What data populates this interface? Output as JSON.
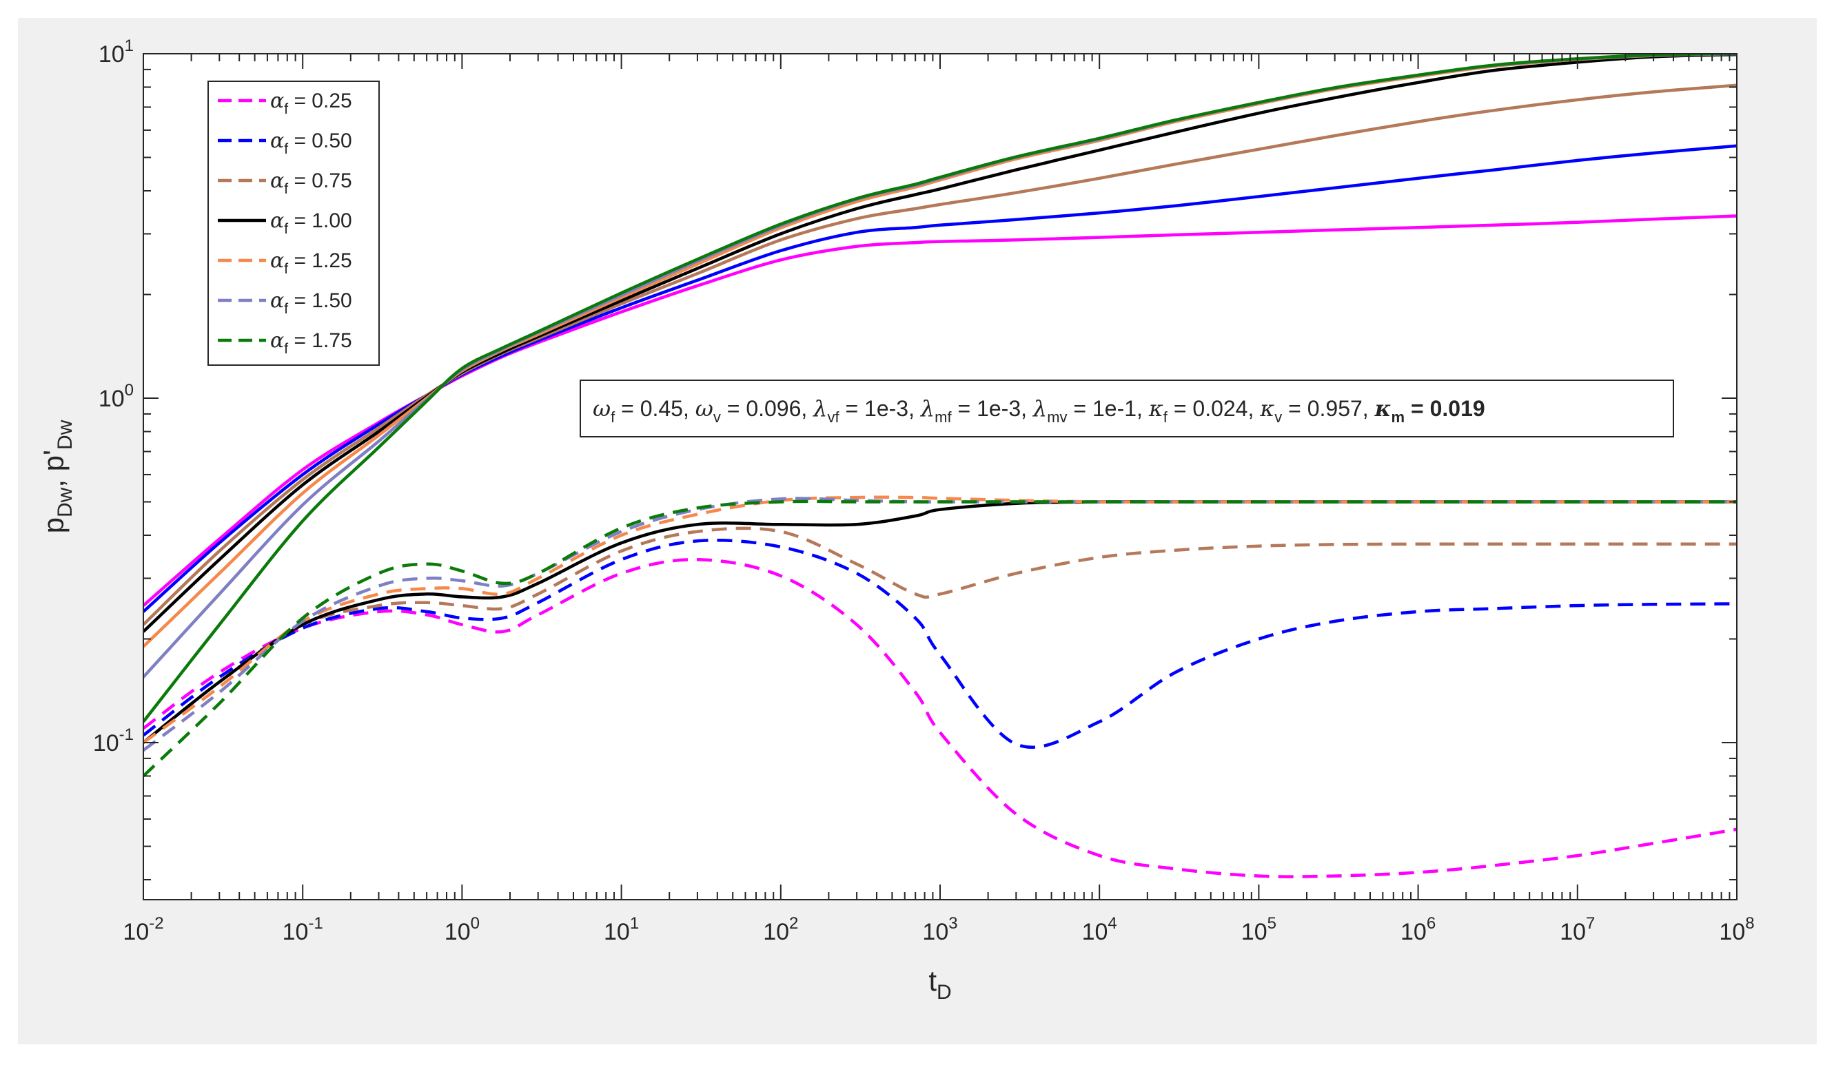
{
  "chart_data": {
    "type": "line",
    "title": "",
    "xlabel": {
      "base": "t",
      "sub": "D"
    },
    "ylabel": {
      "text": "p",
      "sub1": "Dw",
      "mid": ", p'",
      "sub2": "Dw"
    },
    "xscale": "log",
    "yscale": "log",
    "xlim": [
      0.01,
      100000000
    ],
    "ylim": [
      0.035,
      10
    ],
    "x_ticks": [
      {
        "base": "10",
        "exp": "-2",
        "value": 0.01
      },
      {
        "base": "10",
        "exp": "-1",
        "value": 0.1
      },
      {
        "base": "10",
        "exp": "0",
        "value": 1
      },
      {
        "base": "10",
        "exp": "1",
        "value": 10
      },
      {
        "base": "10",
        "exp": "2",
        "value": 100
      },
      {
        "base": "10",
        "exp": "3",
        "value": 1000
      },
      {
        "base": "10",
        "exp": "4",
        "value": 10000
      },
      {
        "base": "10",
        "exp": "5",
        "value": 100000
      },
      {
        "base": "10",
        "exp": "6",
        "value": 1000000
      },
      {
        "base": "10",
        "exp": "7",
        "value": 10000000
      },
      {
        "base": "10",
        "exp": "8",
        "value": 100000000
      }
    ],
    "y_ticks": [
      {
        "base": "10",
        "exp": "-1",
        "value": 0.1
      },
      {
        "base": "10",
        "exp": "0",
        "value": 1
      },
      {
        "base": "10",
        "exp": "1",
        "value": 10
      }
    ],
    "grid": false,
    "legend_position": "top-left",
    "legend": [
      {
        "sym": "α",
        "sub": "f",
        "text": " = 0.25",
        "color": "#ff00ff",
        "dash": true
      },
      {
        "sym": "α",
        "sub": "f",
        "text": " = 0.50",
        "color": "#0000ff",
        "dash": true
      },
      {
        "sym": "α",
        "sub": "f",
        "text": " = 0.75",
        "color": "#b5795a",
        "dash": true
      },
      {
        "sym": "α",
        "sub": "f",
        "text": " = 1.00",
        "color": "#000000",
        "dash": false
      },
      {
        "sym": "α",
        "sub": "f",
        "text": " = 1.25",
        "color": "#f5884a",
        "dash": true
      },
      {
        "sym": "α",
        "sub": "f",
        "text": " = 1.50",
        "color": "#7f7fc4",
        "dash": true
      },
      {
        "sym": "α",
        "sub": "f",
        "text": " = 1.75",
        "color": "#0a7a0a",
        "dash": true
      }
    ],
    "annotation": [
      {
        "t": "ω",
        "sym": true
      },
      {
        "t": "f",
        "sub": true
      },
      {
        "t": " = 0.45, "
      },
      {
        "t": "ω",
        "sym": true
      },
      {
        "t": "v",
        "sub": true
      },
      {
        "t": " = 0.096, "
      },
      {
        "t": "λ",
        "sym": true
      },
      {
        "t": "vf",
        "sub": true
      },
      {
        "t": " = 1e-3, "
      },
      {
        "t": "λ",
        "sym": true
      },
      {
        "t": "mf",
        "sub": true
      },
      {
        "t": " = 1e-3, "
      },
      {
        "t": "λ",
        "sym": true
      },
      {
        "t": "mv",
        "sub": true
      },
      {
        "t": " = 1e-1, "
      },
      {
        "t": "κ",
        "sym": true
      },
      {
        "t": "f",
        "sub": true
      },
      {
        "t": " = 0.024, "
      },
      {
        "t": "κ",
        "sym": true
      },
      {
        "t": "v",
        "sub": true
      },
      {
        "t": " = 0.957, "
      },
      {
        "t": "κ",
        "sym": true,
        "bold": true
      },
      {
        "t": "m",
        "sub": true,
        "bold": true
      },
      {
        "t": " = 0.019",
        "bold": true
      }
    ],
    "x": [
      0.01,
      0.03,
      0.1,
      0.3,
      0.6,
      1,
      1.8,
      3,
      10,
      30,
      100,
      300,
      700,
      1000,
      3000,
      10000,
      30000,
      100000,
      300000,
      1000000,
      3000000,
      10000000,
      30000000,
      100000000
    ],
    "series": [
      {
        "legend_index": 0,
        "kind": "pressure",
        "color": "#ff00ff",
        "dash": false,
        "values": [
          0.25,
          0.39,
          0.62,
          0.85,
          1.02,
          1.16,
          1.32,
          1.45,
          1.78,
          2.12,
          2.52,
          2.76,
          2.83,
          2.85,
          2.88,
          2.93,
          2.98,
          3.03,
          3.08,
          3.13,
          3.18,
          3.24,
          3.31,
          3.38
        ]
      },
      {
        "legend_index": 1,
        "kind": "pressure",
        "color": "#0000ff",
        "dash": false,
        "values": [
          0.24,
          0.38,
          0.6,
          0.84,
          1.02,
          1.17,
          1.33,
          1.47,
          1.83,
          2.2,
          2.68,
          3.03,
          3.13,
          3.18,
          3.3,
          3.45,
          3.62,
          3.85,
          4.08,
          4.35,
          4.6,
          4.9,
          5.15,
          5.4
        ]
      },
      {
        "legend_index": 2,
        "kind": "pressure",
        "color": "#b5795a",
        "dash": false,
        "values": [
          0.22,
          0.36,
          0.58,
          0.82,
          1.02,
          1.18,
          1.35,
          1.49,
          1.88,
          2.3,
          2.88,
          3.32,
          3.55,
          3.65,
          3.95,
          4.35,
          4.78,
          5.28,
          5.78,
          6.35,
          6.85,
          7.35,
          7.75,
          8.1
        ]
      },
      {
        "legend_index": 3,
        "kind": "pressure",
        "color": "#000000",
        "dash": false,
        "values": [
          0.21,
          0.34,
          0.56,
          0.8,
          1.01,
          1.19,
          1.36,
          1.51,
          1.92,
          2.38,
          3.0,
          3.55,
          3.9,
          4.05,
          4.6,
          5.25,
          5.92,
          6.72,
          7.45,
          8.25,
          8.95,
          9.45,
          9.8,
          9.95
        ]
      },
      {
        "legend_index": 4,
        "kind": "pressure",
        "color": "#f5884a",
        "dash": false,
        "values": [
          0.19,
          0.31,
          0.53,
          0.78,
          1.0,
          1.2,
          1.38,
          1.53,
          1.96,
          2.45,
          3.12,
          3.72,
          4.1,
          4.3,
          4.95,
          5.6,
          6.35,
          7.15,
          7.9,
          8.6,
          9.2,
          9.62,
          9.88,
          10.0
        ]
      },
      {
        "legend_index": 5,
        "kind": "pressure",
        "color": "#7f7fc4",
        "dash": false,
        "values": [
          0.155,
          0.27,
          0.49,
          0.75,
          0.99,
          1.21,
          1.39,
          1.55,
          1.99,
          2.5,
          3.17,
          3.78,
          4.15,
          4.35,
          5.0,
          5.65,
          6.4,
          7.2,
          7.95,
          8.65,
          9.25,
          9.65,
          9.9,
          10.0
        ]
      },
      {
        "legend_index": 6,
        "kind": "pressure",
        "color": "#0a7a0a",
        "dash": false,
        "values": [
          0.115,
          0.22,
          0.44,
          0.72,
          0.98,
          1.22,
          1.4,
          1.56,
          2.02,
          2.53,
          3.2,
          3.8,
          4.18,
          4.38,
          5.02,
          5.68,
          6.42,
          7.22,
          7.97,
          8.67,
          9.27,
          9.67,
          9.92,
          10.02
        ]
      },
      {
        "legend_index": 0,
        "kind": "derivative",
        "color": "#ff00ff",
        "dash": true,
        "values": [
          0.11,
          0.16,
          0.215,
          0.24,
          0.235,
          0.22,
          0.21,
          0.235,
          0.31,
          0.34,
          0.305,
          0.22,
          0.14,
          0.107,
          0.062,
          0.047,
          0.043,
          0.041,
          0.041,
          0.042,
          0.044,
          0.047,
          0.051,
          0.056
        ]
      },
      {
        "legend_index": 1,
        "kind": "derivative",
        "color": "#0000ff",
        "dash": true,
        "values": [
          0.105,
          0.155,
          0.215,
          0.245,
          0.24,
          0.23,
          0.23,
          0.255,
          0.34,
          0.385,
          0.37,
          0.31,
          0.23,
          0.18,
          0.099,
          0.115,
          0.16,
          0.2,
          0.225,
          0.24,
          0.245,
          0.25,
          0.252,
          0.253
        ]
      },
      {
        "legend_index": 2,
        "kind": "derivative",
        "color": "#b5795a",
        "dash": true,
        "values": [
          0.1,
          0.15,
          0.22,
          0.25,
          0.255,
          0.25,
          0.245,
          0.27,
          0.36,
          0.41,
          0.41,
          0.33,
          0.27,
          0.27,
          0.31,
          0.345,
          0.362,
          0.372,
          0.376,
          0.377,
          0.377,
          0.377,
          0.377,
          0.377
        ]
      },
      {
        "legend_index": 3,
        "kind": "derivative",
        "color": "#000000",
        "dash": false,
        "values": [
          0.1,
          0.15,
          0.22,
          0.26,
          0.27,
          0.265,
          0.265,
          0.29,
          0.38,
          0.43,
          0.43,
          0.43,
          0.455,
          0.475,
          0.495,
          0.5,
          0.5,
          0.5,
          0.5,
          0.5,
          0.5,
          0.5,
          0.5,
          0.5
        ]
      },
      {
        "legend_index": 4,
        "kind": "derivative",
        "color": "#f5884a",
        "dash": true,
        "values": [
          0.1,
          0.145,
          0.225,
          0.27,
          0.28,
          0.28,
          0.27,
          0.3,
          0.4,
          0.46,
          0.505,
          0.515,
          0.515,
          0.512,
          0.505,
          0.5,
          0.5,
          0.5,
          0.5,
          0.5,
          0.5,
          0.5,
          0.5,
          0.5
        ]
      },
      {
        "legend_index": 5,
        "kind": "derivative",
        "color": "#7f7fc4",
        "dash": true,
        "values": [
          0.095,
          0.14,
          0.225,
          0.285,
          0.3,
          0.295,
          0.285,
          0.31,
          0.41,
          0.475,
          0.51,
          0.505,
          0.5,
          0.5,
          0.5,
          0.5,
          0.5,
          0.5,
          0.5,
          0.5,
          0.5,
          0.5,
          0.5,
          0.5
        ]
      },
      {
        "legend_index": 6,
        "kind": "derivative",
        "color": "#0a7a0a",
        "dash": true,
        "values": [
          0.08,
          0.13,
          0.23,
          0.31,
          0.33,
          0.315,
          0.29,
          0.31,
          0.42,
          0.48,
          0.5,
          0.5,
          0.5,
          0.5,
          0.5,
          0.5,
          0.5,
          0.5,
          0.5,
          0.5,
          0.5,
          0.5,
          0.5,
          0.5
        ]
      }
    ]
  }
}
